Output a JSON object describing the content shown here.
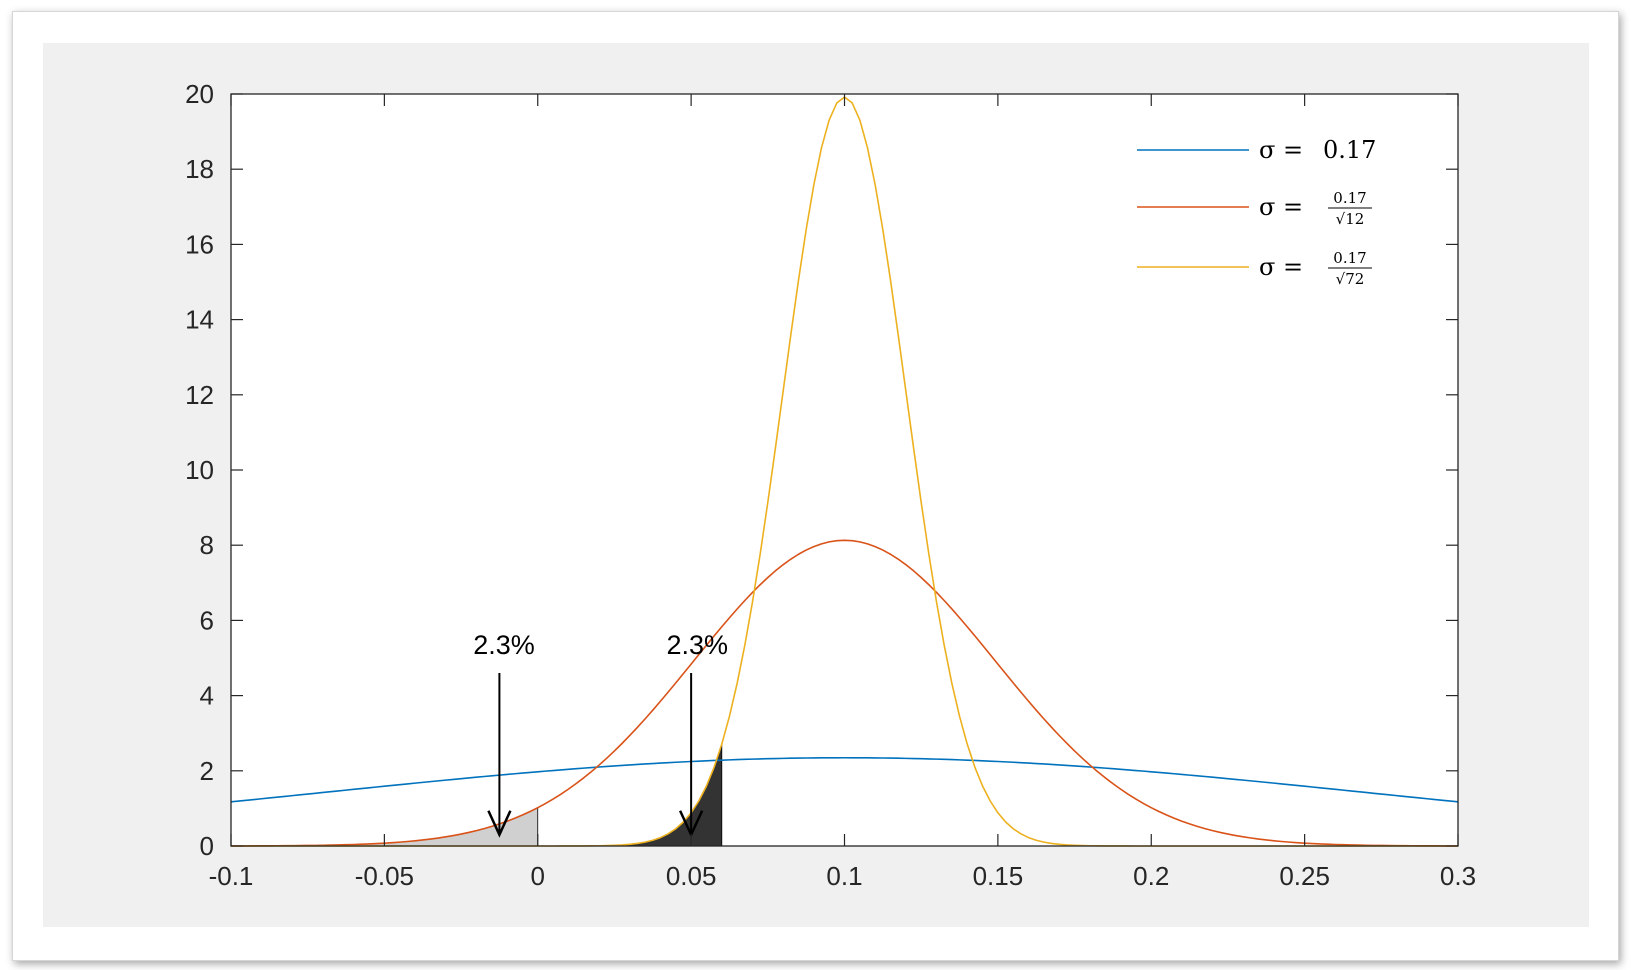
{
  "chart_data": {
    "type": "line",
    "title": "",
    "xlabel": "",
    "ylabel": "",
    "xlim": [
      -0.1,
      0.3
    ],
    "ylim": [
      0,
      20
    ],
    "xticks": [
      -0.1,
      -0.05,
      0,
      0.05,
      0.1,
      0.15,
      0.2,
      0.25,
      0.3
    ],
    "xtick_labels": [
      "-0.1",
      "-0.05",
      "0",
      "0.05",
      "0.1",
      "0.15",
      "0.2",
      "0.25",
      "0.3"
    ],
    "yticks": [
      0,
      2,
      4,
      6,
      8,
      10,
      12,
      14,
      16,
      18,
      20
    ],
    "ytick_labels": [
      "0",
      "2",
      "4",
      "6",
      "8",
      "10",
      "12",
      "14",
      "16",
      "18",
      "20"
    ],
    "grid": false,
    "legend_position": "top-right",
    "series": [
      {
        "name_prefix": "σ = ",
        "name_value": "0.17",
        "name_numerator": "",
        "name_denominator": "",
        "mean": 0.1,
        "sigma": 0.17,
        "color": "#0072BD"
      },
      {
        "name_prefix": "σ = ",
        "name_value": "",
        "name_numerator": "0.17",
        "name_denominator": "√12",
        "mean": 0.1,
        "sigma": 0.04907,
        "color": "#D95319"
      },
      {
        "name_prefix": "σ = ",
        "name_value": "",
        "name_numerator": "0.17",
        "name_denominator": "√72",
        "mean": 0.1,
        "sigma": 0.02003,
        "color": "#EDB120"
      }
    ],
    "shaded_regions": [
      {
        "series_index": 1,
        "x_from": -0.1,
        "x_to": 0,
        "color": "#d0d0d0"
      },
      {
        "series_index": 2,
        "x_from": 0,
        "x_to": 0.06,
        "color": "#333333"
      }
    ],
    "annotations": [
      {
        "text": "2.3%",
        "x": -0.0125,
        "y": 0.3,
        "text_x": -0.011,
        "text_y": 5.0
      },
      {
        "text": "2.3%",
        "x": 0.05,
        "y": 0.3,
        "text_x": 0.052,
        "text_y": 5.0
      }
    ]
  }
}
